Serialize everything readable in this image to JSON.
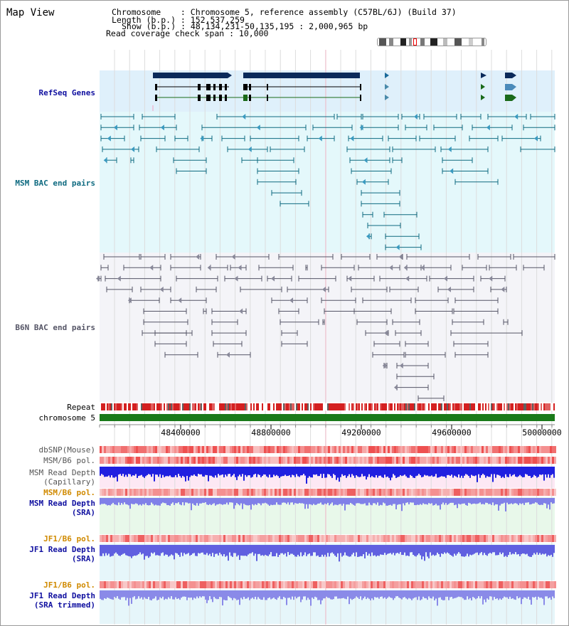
{
  "title": "Map View",
  "info": {
    "chromosome": "Chromosome    : Chromosome 5, reference assembly (C57BL/6J) (Build 37)",
    "length": "Length (b.p.) : 152,537,259",
    "show": "Show (b.p.) : 48,134,231-50,135,195 : 2,000,965 bp",
    "coverage": "Read coverage check span : 10,000"
  },
  "tracks": {
    "refseq": "RefSeq Genes",
    "msm_bac": "MSM BAC end pairs",
    "b6n_bac": "B6N BAC end pairs",
    "repeat": "Repeat",
    "chromosome": "chromosome 5",
    "dbsnp": "dbSNP(Mouse)",
    "msm_pol": "MSM/B6 pol.",
    "msm_depth_cap_1": "MSM Read Depth",
    "msm_depth_cap_2": "(Capillary)",
    "msm_pol_sra": "MSM/B6 pol.",
    "msm_depth_sra_1": "MSM Read Depth",
    "msm_depth_sra_2": "(SRA)",
    "jf1_pol_1": "JF1/B6 pol.",
    "jf1_depth_1": "JF1 Read Depth",
    "jf1_depth_1b": "(SRA)",
    "jf1_pol_2": "JF1/B6 pol.",
    "jf1_depth_2": "JF1 Read Depth",
    "jf1_depth_2b": "(SRA trimmed)"
  },
  "axis": {
    "ticks": [
      "48400000",
      "48800000",
      "49200000",
      "49600000",
      "50000000"
    ]
  },
  "colors": {
    "refseq_bg": "#dff0fb",
    "msm_bg": "#e4f8fb",
    "b6n_bg": "#f4f4f8",
    "msm_label": "#0e6a80",
    "b6n_label": "#555566",
    "blue_label": "#1010a0",
    "orange_label": "#d08a00",
    "depth_bg_pink": "#fde8f4",
    "depth_bg_green": "#e8f8ea"
  }
}
